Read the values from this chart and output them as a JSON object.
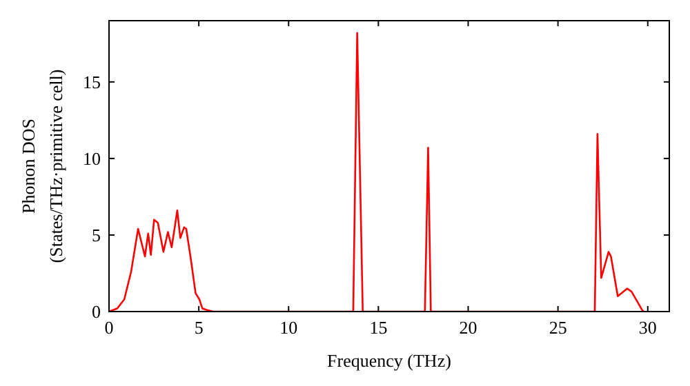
{
  "chart_data": {
    "type": "line",
    "xlabel": "Frequency (THz)",
    "ylabel": "Phonon DOS\n(States/THz·primitive cell)",
    "xlim": [
      0,
      31.2
    ],
    "ylim": [
      0,
      19
    ],
    "xticks": [
      0,
      5,
      10,
      15,
      20,
      25,
      30
    ],
    "yticks": [
      0,
      5,
      10,
      15
    ],
    "marker": "none",
    "line_style": "solid",
    "series": [
      {
        "color": "#ff0000",
        "x": [
          0,
          0.46,
          0.85,
          1.23,
          1.62,
          2.0,
          2.18,
          2.33,
          2.51,
          2.72,
          3.03,
          3.28,
          3.49,
          3.8,
          3.97,
          4.18,
          4.3,
          4.56,
          4.82,
          5.03,
          5.2,
          5.46,
          5.8,
          13.6,
          13.82,
          14.13,
          17.59,
          17.77,
          17.92,
          27.05,
          27.2,
          27.41,
          27.82,
          27.95,
          28.33,
          28.85,
          29.1,
          29.69,
          29.77
        ],
        "values": [
          0,
          0.2,
          0.8,
          2.6,
          5.4,
          3.6,
          5.1,
          3.7,
          6.0,
          5.8,
          3.9,
          5.2,
          4.2,
          6.6,
          4.8,
          5.5,
          5.4,
          3.4,
          1.2,
          0.8,
          0.2,
          0.1,
          0,
          0,
          18.2,
          0,
          0,
          10.7,
          0,
          0,
          11.6,
          2.2,
          3.9,
          3.6,
          1.0,
          1.5,
          1.3,
          0.1,
          0
        ]
      }
    ]
  }
}
